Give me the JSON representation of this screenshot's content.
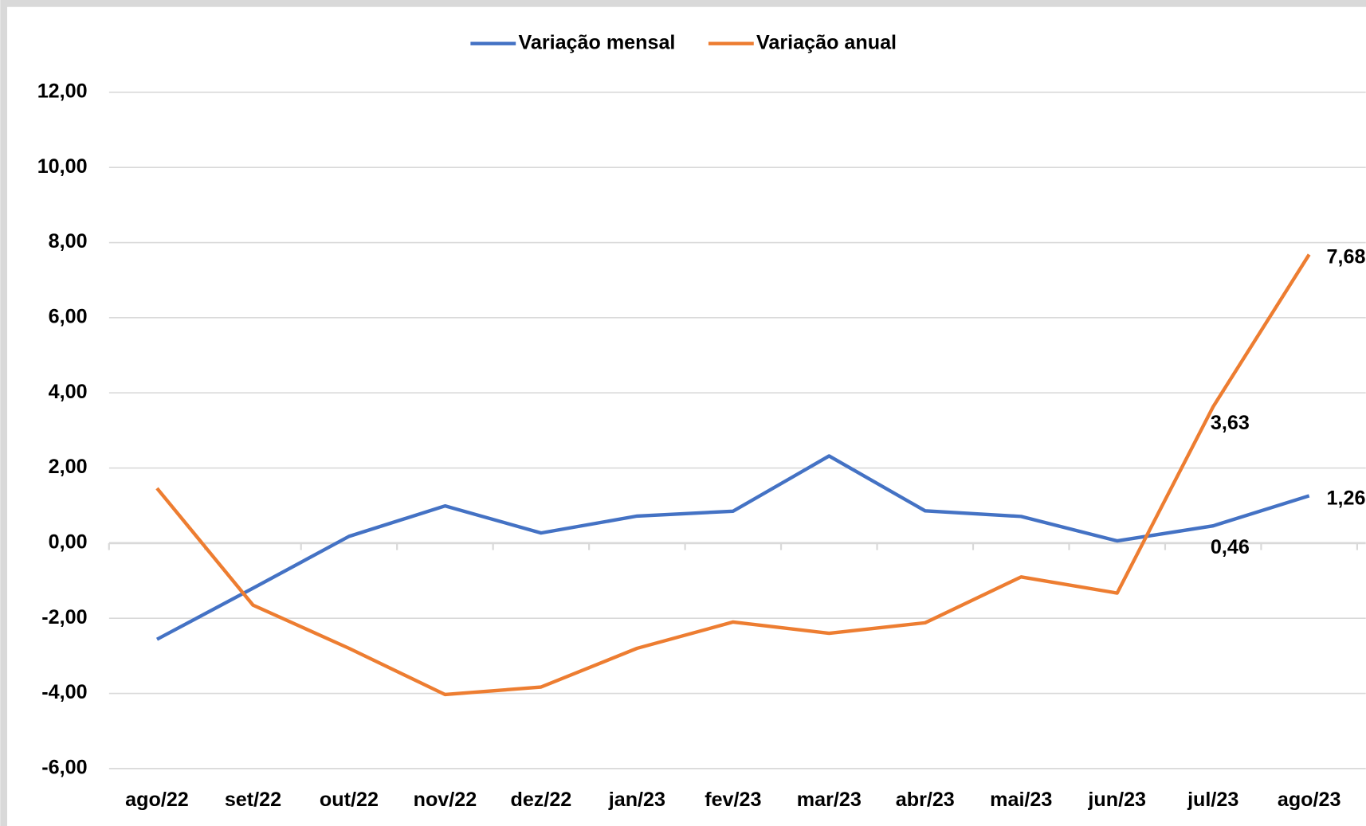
{
  "chart_data": {
    "type": "line",
    "categories": [
      "ago/22",
      "set/22",
      "out/22",
      "nov/22",
      "dez/22",
      "jan/23",
      "fev/23",
      "mar/23",
      "abr/23",
      "mai/23",
      "jun/23",
      "jul/23",
      "ago/23"
    ],
    "series": [
      {
        "name": "Variação mensal",
        "color": "#4472c4",
        "values": [
          -2.56,
          -1.2,
          0.18,
          0.99,
          0.27,
          0.72,
          0.85,
          2.32,
          0.86,
          0.71,
          0.06,
          0.46,
          1.26
        ],
        "value_labels": [
          null,
          null,
          null,
          null,
          null,
          null,
          null,
          null,
          null,
          null,
          null,
          "0,46",
          "1,26"
        ]
      },
      {
        "name": "Variação anual",
        "color": "#ed7d31",
        "values": [
          1.46,
          -1.65,
          -2.8,
          -4.03,
          -3.83,
          -2.8,
          -2.1,
          -2.4,
          -2.12,
          -0.9,
          -1.33,
          3.63,
          7.68
        ],
        "value_labels": [
          null,
          null,
          null,
          null,
          null,
          null,
          null,
          null,
          null,
          null,
          null,
          "3,63",
          "7,68"
        ]
      }
    ],
    "ylim": [
      -6,
      12
    ],
    "yticks": [
      {
        "value": -6,
        "label": "-6,00"
      },
      {
        "value": -4,
        "label": "-4,00"
      },
      {
        "value": -2,
        "label": "-2,00"
      },
      {
        "value": 0,
        "label": "0,00"
      },
      {
        "value": 2,
        "label": "2,00"
      },
      {
        "value": 4,
        "label": "4,00"
      },
      {
        "value": 6,
        "label": "6,00"
      },
      {
        "value": 8,
        "label": "8,00"
      },
      {
        "value": 10,
        "label": "10,00"
      },
      {
        "value": 12,
        "label": "12,00"
      }
    ],
    "grid": true,
    "legend": "top"
  }
}
